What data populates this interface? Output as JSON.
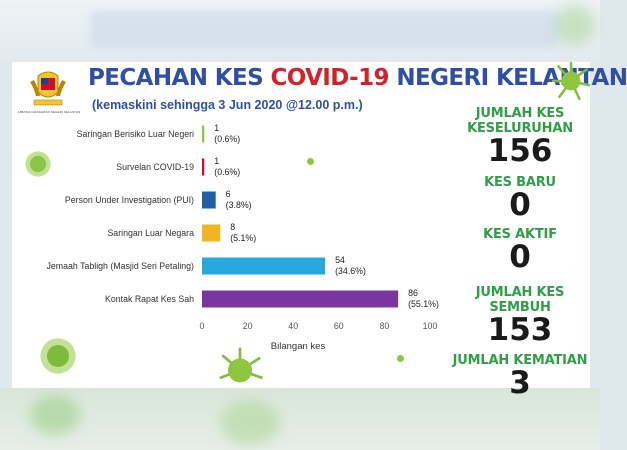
{
  "header": {
    "title_part1": "PECAHAN KES ",
    "title_accent": "COVID-19",
    "title_part2": " NEGERI KELANTAN",
    "subtitle": "(kemaskini sehingga 3 Jun 2020 @12.00 p.m.)",
    "logo_caption": "JABATAN KESIHATAN NEGERI KELANTAN"
  },
  "colors": {
    "title": "#2e4fa3",
    "accent": "#d3232a",
    "stat_label": "#2f9e47",
    "virus": "#8fc63f"
  },
  "chart_data": {
    "type": "bar",
    "orientation": "horizontal",
    "categories": [
      "Saringan Berisiko Luar Negeri",
      "Survelan COVID-19",
      "Person Under Investigation (PUI)",
      "Saringan Luar Negara",
      "Jemaah Tabligh (Masjid Seri Petaling)",
      "Kontak Rapat Kes Sah"
    ],
    "values": [
      1,
      1,
      6,
      8,
      54,
      86
    ],
    "value_labels": [
      "1",
      "1",
      "6",
      "8",
      "54",
      "86"
    ],
    "percent_labels": [
      "(0.6%)",
      "(0.6%)",
      "(3.8%)",
      "(5.1%)",
      "(34.6%)",
      "(55.1%)"
    ],
    "bar_colors": [
      "#8dc63f",
      "#c8102e",
      "#1f5fa8",
      "#f2b325",
      "#29a8e0",
      "#7b35a0"
    ],
    "xlabel": "Bilangan kes",
    "xlim": [
      0,
      100
    ],
    "xticks": [
      "0",
      "20",
      "40",
      "60",
      "80",
      "100"
    ],
    "grid": false,
    "legend": "none"
  },
  "stats": [
    {
      "label": "JUMLAH KES KESELURUHAN",
      "value": "156"
    },
    {
      "label": "KES BARU",
      "value": "0"
    },
    {
      "label": "KES AKTIF",
      "value": "0"
    },
    {
      "label": "JUMLAH KES SEMBUH",
      "value": "153"
    },
    {
      "label": "JUMLAH KEMATIAN",
      "value": "3"
    }
  ]
}
